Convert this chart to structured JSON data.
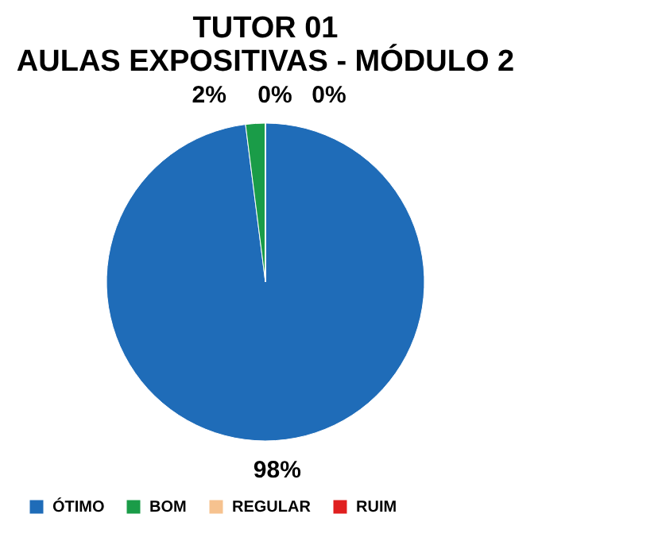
{
  "chart_data": {
    "type": "pie",
    "title": "TUTOR 01\nAULAS EXPOSITIVAS - MÓDULO 2",
    "categories": [
      "ÓTIMO",
      "BOM",
      "REGULAR",
      "RUIM"
    ],
    "values": [
      98,
      2,
      0,
      0
    ],
    "colors": [
      "#1f6cb8",
      "#1a9c48",
      "#f6c28f",
      "#e01f1f"
    ],
    "value_labels": [
      "98%",
      "2%",
      "0%",
      "0%"
    ],
    "legend": "bottom"
  }
}
